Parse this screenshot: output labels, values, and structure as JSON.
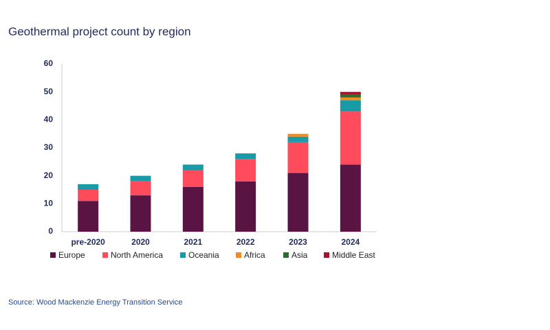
{
  "chart_data": {
    "type": "stacked_bar",
    "title": "Geothermal project count by region",
    "source": "Source: Wood Mackenzie Energy Transition Service",
    "categories": [
      "pre-2020",
      "2020",
      "2021",
      "2022",
      "2023",
      "2024"
    ],
    "series": [
      {
        "name": "Europe",
        "color": "#5a1444",
        "values": [
          11,
          13,
          16,
          18,
          21,
          24
        ]
      },
      {
        "name": "North America",
        "color": "#ff4b5c",
        "values": [
          4,
          5,
          6,
          8,
          11,
          19
        ]
      },
      {
        "name": "Oceania",
        "color": "#1a9aa5",
        "values": [
          2,
          2,
          2,
          2,
          2,
          4
        ]
      },
      {
        "name": "Africa",
        "color": "#f28c1c",
        "values": [
          0,
          0,
          0,
          0,
          1,
          1
        ]
      },
      {
        "name": "Asia",
        "color": "#2e6b30",
        "values": [
          0,
          0,
          0,
          0,
          0,
          1
        ]
      },
      {
        "name": "Middle East",
        "color": "#a3142a",
        "values": [
          0,
          0,
          0,
          0,
          0,
          1
        ]
      }
    ],
    "ylim": [
      0,
      60
    ],
    "yticks": [
      0,
      10,
      20,
      30,
      40,
      50,
      60
    ],
    "grid": false
  }
}
